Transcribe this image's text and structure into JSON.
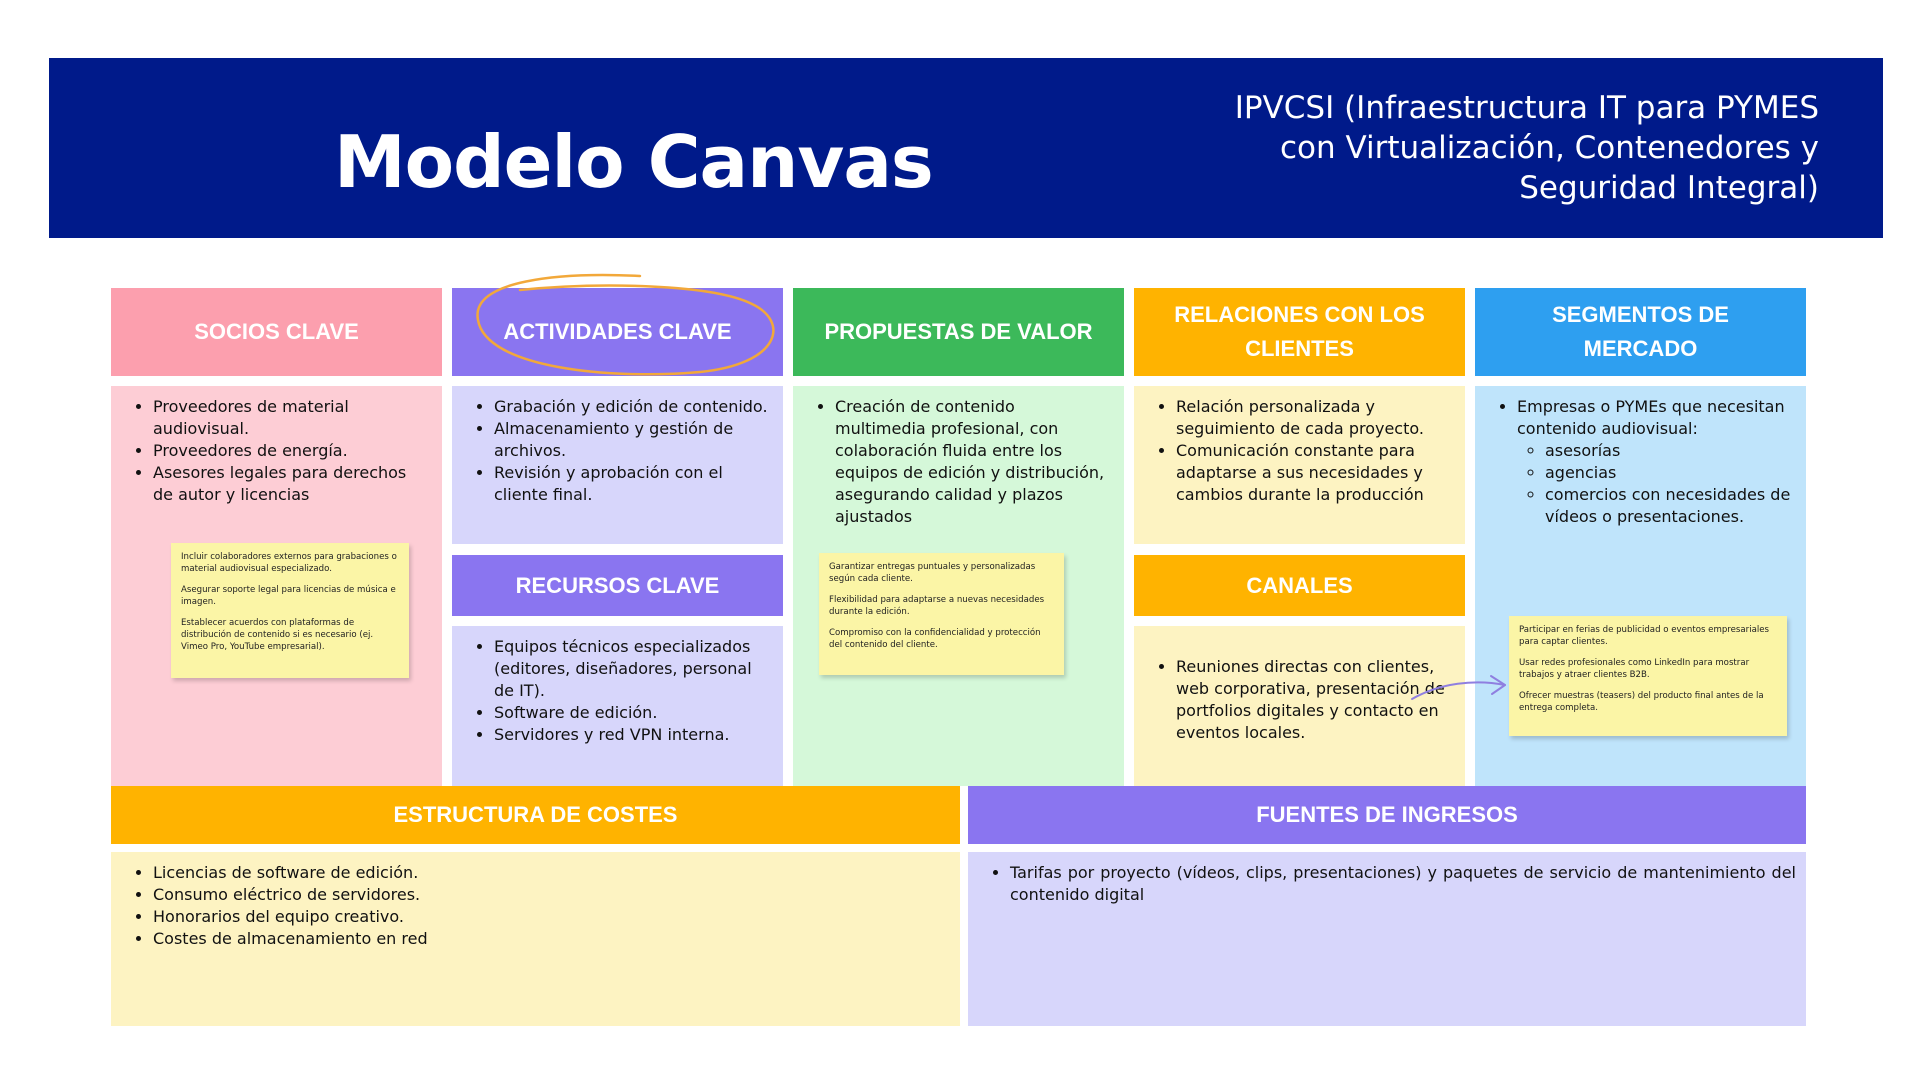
{
  "header": {
    "title": "Modelo Canvas",
    "subtitle_lines": [
      "IPVCSI (Infraestructura IT para PYMES",
      "con Virtualización, Contenedores y",
      "Seguridad Integral)"
    ]
  },
  "colors": {
    "banner": "#001a8a",
    "socios": "#fc9fae",
    "actividades": "#8a75f0",
    "propuestas": "#3cb95a",
    "relaciones": "#ffb300",
    "segmentos": "#2e9ff0",
    "circle_annotation": "#f2a83a",
    "arrow_annotation": "#8f7fe0"
  },
  "sections": {
    "socios": {
      "title": "SOCIOS CLAVE",
      "items": [
        "Proveedores de material audiovisual.",
        "Proveedores de energía.",
        "Asesores legales para derechos de autor y licencias"
      ],
      "note": [
        "Incluir colaboradores externos para grabaciones o material audiovisual especializado.",
        "Asegurar soporte legal para licencias de música e imagen.",
        "Establecer acuerdos con plataformas de distribución de contenido si es necesario (ej. Vimeo Pro, YouTube empresarial)."
      ]
    },
    "actividades": {
      "title": "ACTIVIDADES CLAVE",
      "items": [
        "Grabación y edición de contenido.",
        "Almacenamiento y gestión de archivos.",
        "Revisión y aprobación con el cliente final."
      ]
    },
    "recursos": {
      "title": "RECURSOS CLAVE",
      "items": [
        "Equipos técnicos especializados (editores, diseñadores, personal de IT).",
        "Software de edición.",
        "Servidores y red VPN interna."
      ]
    },
    "propuestas": {
      "title": "PROPUESTAS DE VALOR",
      "items": [
        "Creación de contenido multimedia profesional, con colaboración fluida entre los equipos de edición y distribución, asegurando calidad y plazos ajustados"
      ],
      "note": [
        "Garantizar entregas puntuales y personalizadas según cada cliente.",
        "Flexibilidad para adaptarse a nuevas necesidades durante la edición.",
        "Compromiso con la confidencialidad y protección del contenido del cliente."
      ]
    },
    "relaciones": {
      "title": "RELACIONES CON LOS CLIENTES",
      "items": [
        "Relación personalizada y seguimiento de cada proyecto.",
        "Comunicación constante para adaptarse a sus necesidades y cambios durante la producción"
      ]
    },
    "canales": {
      "title": "CANALES",
      "items": [
        "Reuniones directas con clientes, web corporativa, presentación de portfolios digitales y contacto en eventos locales."
      ]
    },
    "segmentos": {
      "title": "SEGMENTOS DE MERCADO",
      "item": "Empresas o PYMEs que necesitan contenido audiovisual:",
      "subitems": [
        "asesorías",
        "agencias",
        "comercios con necesidades de vídeos o presentaciones."
      ],
      "note": [
        "Participar en ferias de publicidad o eventos empresariales para captar clientes.",
        "Usar redes profesionales como LinkedIn para mostrar trabajos y atraer clientes B2B.",
        "Ofrecer muestras (teasers) del producto final antes de la entrega completa."
      ]
    },
    "costes": {
      "title": "ESTRUCTURA DE COSTES",
      "items": [
        "Licencias de software de edición.",
        "Consumo eléctrico de servidores.",
        "Honorarios del equipo creativo.",
        "Costes de almacenamiento en red"
      ]
    },
    "ingresos": {
      "title": "FUENTES DE INGRESOS",
      "items": [
        "Tarifas por proyecto (vídeos, clips, presentaciones) y paquetes de servicio de mantenimiento del contenido digital"
      ]
    }
  }
}
